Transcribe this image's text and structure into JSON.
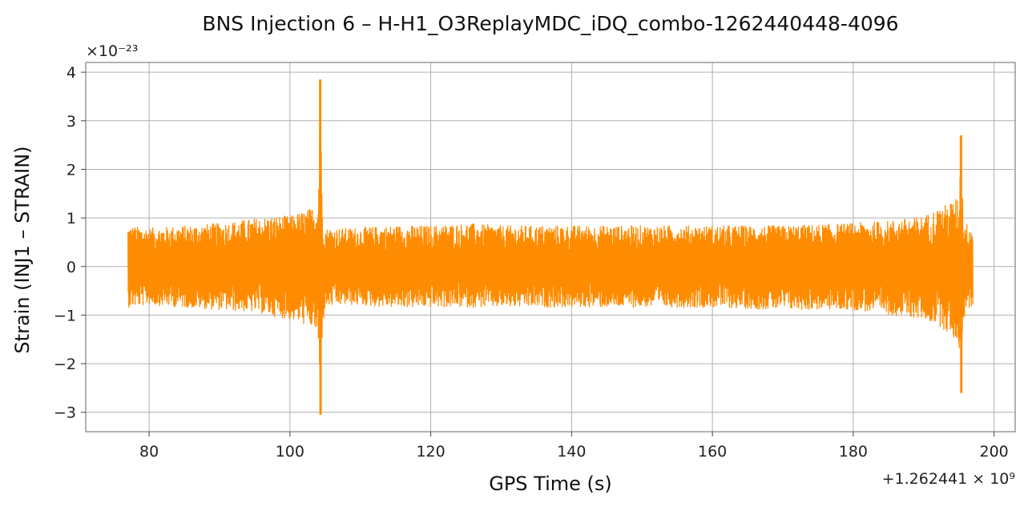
{
  "chart_data": {
    "type": "line",
    "title": "BNS Injection 6 – H-H1_O3ReplayMDC_iDQ_combo-1262440448-4096",
    "xlabel": "GPS Time (s)",
    "ylabel": "Strain (INJ1 – STRAIN)",
    "y_multiplier_label": "×10⁻²³",
    "x_offset_label": "+1.262441 × 10⁹",
    "xlim": [
      71,
      203
    ],
    "ylim": [
      -3.4,
      4.2
    ],
    "x_ticks": [
      80,
      100,
      120,
      140,
      160,
      180,
      200
    ],
    "x_tick_labels": [
      "80",
      "100",
      "120",
      "140",
      "160",
      "180",
      "200"
    ],
    "y_ticks": [
      -3,
      -2,
      -1,
      0,
      1,
      2,
      3,
      4
    ],
    "y_tick_labels": [
      "−3",
      "−2",
      "−1",
      "0",
      "1",
      "2",
      "3",
      "4"
    ],
    "grid": true,
    "series_color": "#ff8c00",
    "series": [
      {
        "x_range": [
          77.0,
          197.0
        ],
        "envelope": {
          "x": [
            77,
            80,
            85,
            90,
            95,
            98,
            100,
            102,
            103.5,
            104.0,
            104.3,
            104.6,
            105,
            108,
            115,
            120,
            125,
            130,
            140,
            150,
            160,
            170,
            180,
            185,
            190,
            192,
            194,
            195.0,
            195.3,
            195.6,
            196,
            197
          ],
          "upper": [
            0.85,
            0.8,
            0.85,
            0.9,
            1.0,
            1.05,
            1.05,
            1.15,
            1.25,
            1.35,
            3.85,
            1.3,
            0.8,
            0.8,
            0.85,
            0.85,
            0.9,
            0.85,
            0.85,
            0.85,
            0.85,
            0.85,
            0.9,
            0.95,
            1.05,
            1.2,
            1.35,
            1.45,
            2.7,
            1.2,
            0.9,
            0.85
          ],
          "lower": [
            -0.85,
            -0.8,
            -0.85,
            -0.9,
            -0.95,
            -1.05,
            -1.1,
            -1.2,
            -1.3,
            -1.5,
            -3.05,
            -1.35,
            -0.85,
            -0.8,
            -0.85,
            -0.85,
            -0.85,
            -0.85,
            -0.85,
            -0.85,
            -0.85,
            -0.9,
            -0.9,
            -1.0,
            -1.1,
            -1.2,
            -1.45,
            -1.6,
            -2.6,
            -1.2,
            -0.9,
            -0.85
          ]
        }
      }
    ]
  }
}
